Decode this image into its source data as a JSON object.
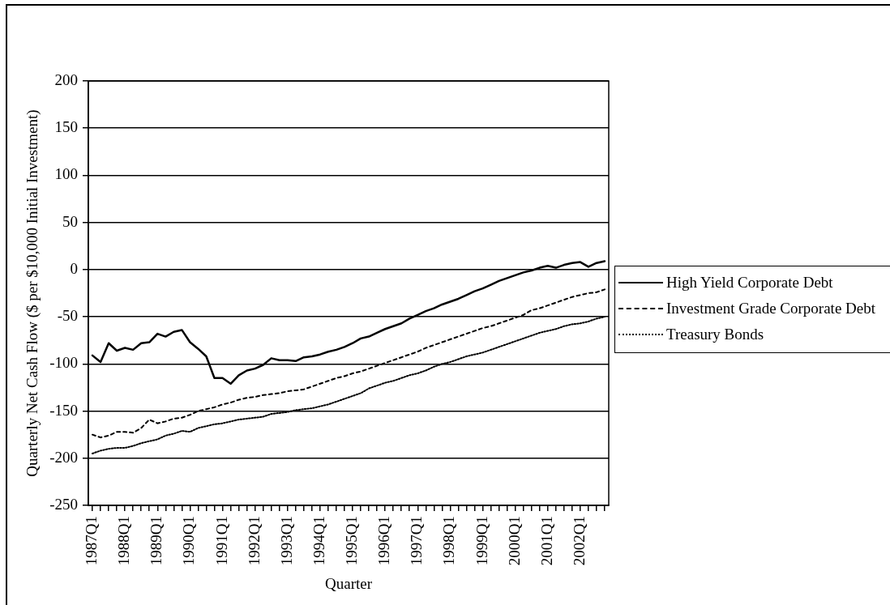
{
  "chart_data": {
    "type": "line",
    "xlabel": "Quarter",
    "ylabel": "Quarterly Net Cash Flow ($ per $10,000 Initial Investment)",
    "categories": [
      "1987Q1",
      null,
      null,
      null,
      "1988Q1",
      null,
      null,
      null,
      "1989Q1",
      null,
      null,
      null,
      "1990Q1",
      null,
      null,
      null,
      "1991Q1",
      null,
      null,
      null,
      "1992Q1",
      null,
      null,
      null,
      "1993Q1",
      null,
      null,
      null,
      "1994Q1",
      null,
      null,
      null,
      "1995Q1",
      null,
      null,
      null,
      "1996Q1",
      null,
      null,
      null,
      "1997Q1",
      null,
      null,
      null,
      "1998Q1",
      null,
      null,
      null,
      "1999Q1",
      null,
      null,
      null,
      "2000Q1",
      null,
      null,
      null,
      "2001Q1",
      null,
      null,
      null,
      "2002Q1",
      null,
      null,
      null
    ],
    "series": [
      {
        "name": "High Yield Corporate Debt",
        "color": "#000000",
        "line_style": "solid",
        "values": [
          -91,
          -98,
          -78,
          -86,
          -83,
          -85,
          -78,
          -77,
          -68,
          -71,
          -66,
          -64,
          -77,
          -84,
          -92,
          -115,
          -115,
          -121,
          -112,
          -107,
          -105,
          -101,
          -94,
          -96,
          -96,
          -97,
          -93,
          -92,
          -90,
          -87,
          -85,
          -82,
          -78,
          -73,
          -71,
          -67,
          -63,
          -60,
          -57,
          -52,
          -48,
          -44,
          -41,
          -37,
          -34,
          -31,
          -27,
          -23,
          -20,
          -16,
          -12,
          -9,
          -6,
          -3,
          -1,
          2,
          4,
          2,
          5,
          7,
          8,
          3,
          7,
          9
        ]
      },
      {
        "name": "Investment Grade Corporate Debt",
        "color": "#000000",
        "line_style": "dashed",
        "values": [
          -175,
          -178,
          -176,
          -172,
          -172,
          -173,
          -168,
          -159,
          -163,
          -161,
          -158,
          -157,
          -154,
          -150,
          -148,
          -146,
          -143,
          -141,
          -138,
          -136,
          -135,
          -133,
          -132,
          -131,
          -129,
          -128,
          -127,
          -124,
          -121,
          -118,
          -115,
          -113,
          -110,
          -108,
          -105,
          -102,
          -99,
          -96,
          -93,
          -90,
          -87,
          -83,
          -80,
          -77,
          -74,
          -71,
          -68,
          -65,
          -62,
          -60,
          -57,
          -54,
          -51,
          -48,
          -43,
          -41,
          -38,
          -35,
          -32,
          -29,
          -27,
          -25,
          -24,
          -21
        ]
      },
      {
        "name": "Treasury Bonds",
        "color": "#000000",
        "line_style": "dotted",
        "values": [
          -195,
          -192,
          -190,
          -189,
          -189,
          -187,
          -184,
          -182,
          -180,
          -176,
          -174,
          -171,
          -172,
          -168,
          -166,
          -164,
          -163,
          -161,
          -159,
          -158,
          -157,
          -156,
          -153,
          -152,
          -151,
          -149,
          -148,
          -147,
          -145,
          -143,
          -140,
          -137,
          -134,
          -131,
          -126,
          -123,
          -120,
          -118,
          -115,
          -112,
          -110,
          -107,
          -103,
          -100,
          -98,
          -95,
          -92,
          -90,
          -88,
          -85,
          -82,
          -79,
          -76,
          -73,
          -70,
          -67,
          -65,
          -63,
          -60,
          -58,
          -57,
          -55,
          -52,
          -50
        ]
      }
    ],
    "ylim": [
      -250,
      200
    ],
    "yticks": [
      -250,
      -200,
      -150,
      -100,
      -50,
      0,
      50,
      100,
      150,
      200
    ],
    "grid": "y",
    "legend": "right"
  }
}
